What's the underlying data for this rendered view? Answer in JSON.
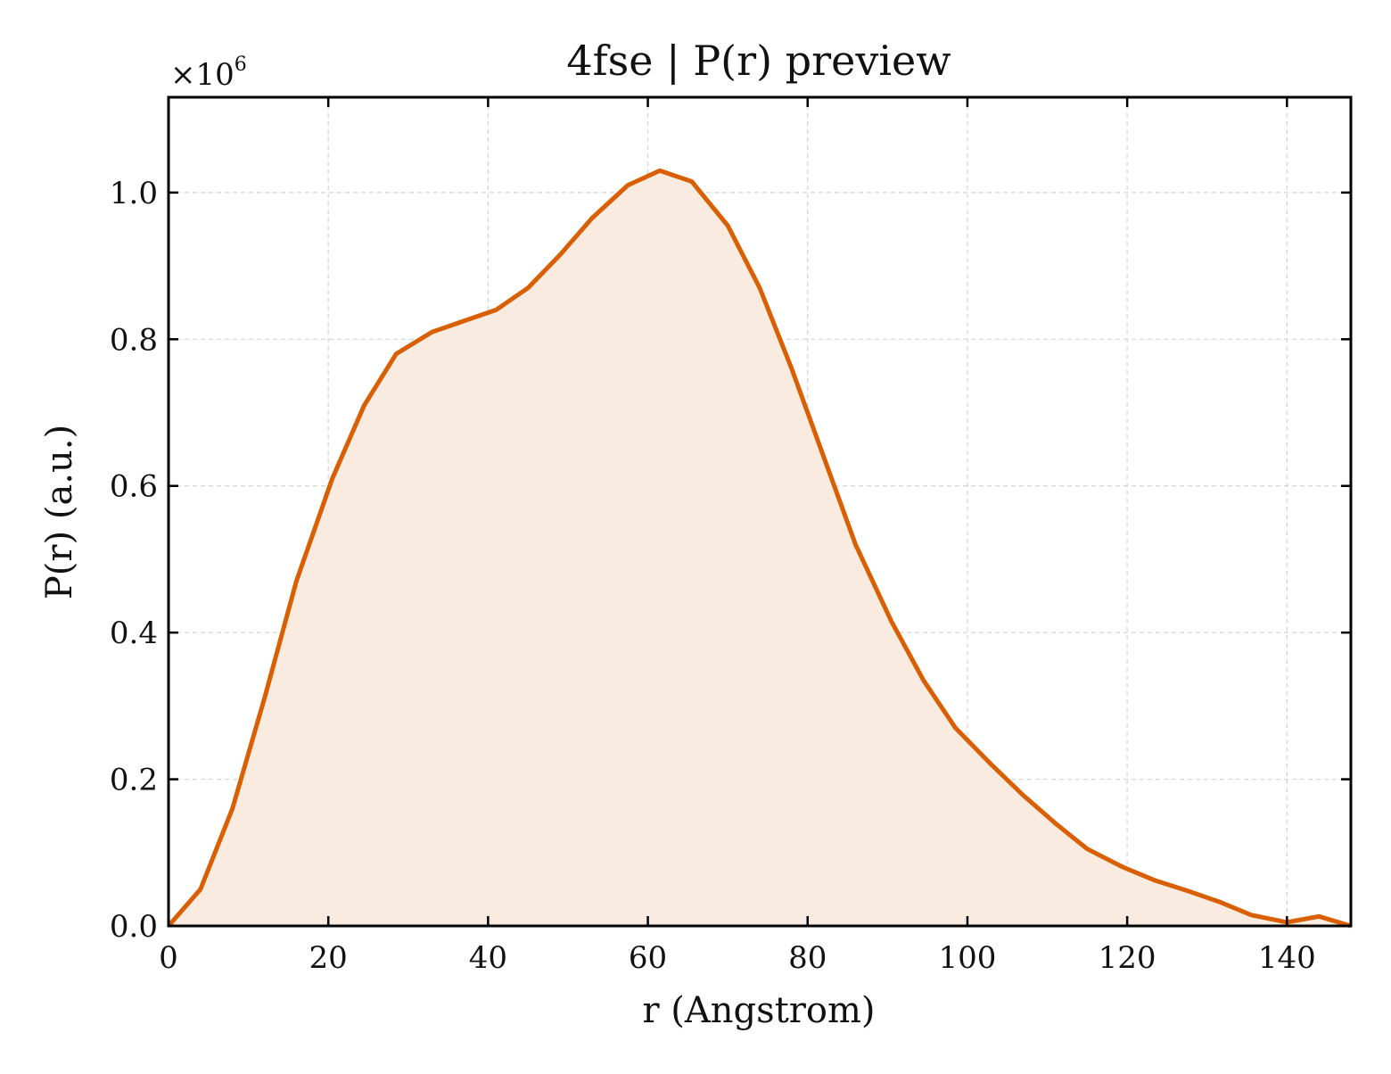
{
  "chart_data": {
    "type": "area",
    "title": "4fse | P(r) preview",
    "xlabel": "r (Angstrom)",
    "ylabel": "P(r) (a.u.)",
    "multiplier_prefix": "×10",
    "multiplier_exponent": "6",
    "xlim": [
      0,
      148
    ],
    "ylim": [
      0,
      1.13
    ],
    "x_ticks": [
      0,
      20,
      40,
      60,
      80,
      100,
      120,
      140
    ],
    "x_tick_labels": [
      "0",
      "20",
      "40",
      "60",
      "80",
      "100",
      "120",
      "140"
    ],
    "y_ticks": [
      0.0,
      0.2,
      0.4,
      0.6,
      0.8,
      1.0
    ],
    "y_tick_labels": [
      "0.0",
      "0.2",
      "0.4",
      "0.6",
      "0.8",
      "1.0"
    ],
    "grid": true,
    "line_color": "#d95f02",
    "fill_color": "#f9ebe0",
    "series": [
      {
        "x": [
          0,
          4,
          8,
          12,
          16,
          20.5,
          24.5,
          28.5,
          33,
          37,
          41,
          45,
          49,
          53,
          57.5,
          61.5,
          65.5,
          70,
          74,
          78,
          82,
          86,
          90.5,
          94.5,
          98.5,
          103,
          107,
          111,
          115,
          119.5,
          123.5,
          127.5,
          131.5,
          135.5,
          140,
          144,
          148
        ],
        "y": [
          0.0,
          0.05,
          0.16,
          0.31,
          0.47,
          0.61,
          0.71,
          0.78,
          0.81,
          0.825,
          0.84,
          0.87,
          0.915,
          0.965,
          1.01,
          1.03,
          1.015,
          0.955,
          0.87,
          0.76,
          0.64,
          0.52,
          0.415,
          0.335,
          0.27,
          0.22,
          0.178,
          0.14,
          0.105,
          0.08,
          0.062,
          0.048,
          0.033,
          0.015,
          0.005,
          0.013,
          0.0
        ]
      }
    ]
  }
}
